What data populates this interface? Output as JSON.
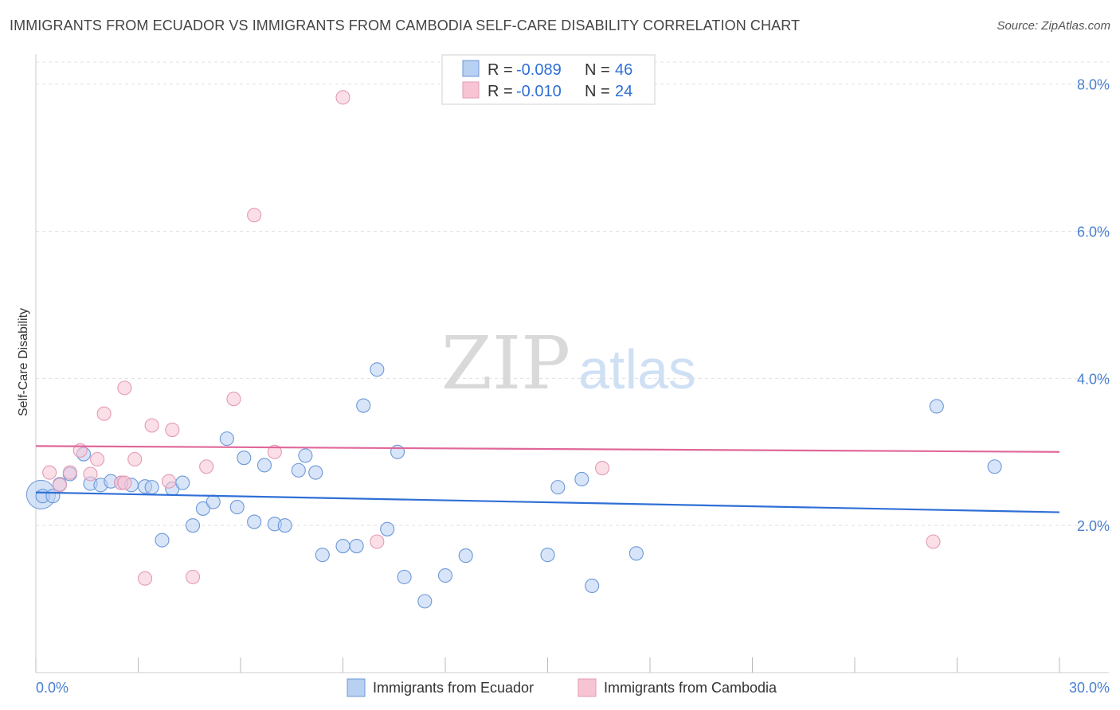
{
  "title": "IMMIGRANTS FROM ECUADOR VS IMMIGRANTS FROM CAMBODIA SELF-CARE DISABILITY CORRELATION CHART",
  "source": "Source: ZipAtlas.com",
  "watermark": {
    "zip": "ZIP",
    "atlas": "atlas"
  },
  "colors": {
    "blue": "#2f6fd6",
    "pink": "#e0679a",
    "blue_fill": "#b8d0f2",
    "pink_fill": "#f7c4d4"
  },
  "legend": {
    "rows": [
      {
        "r_label": "R =",
        "r_value": "-0.089",
        "n_label": "N =",
        "n_value": "46"
      },
      {
        "r_label": "R =",
        "r_value": "-0.010",
        "n_label": "N =",
        "n_value": "24"
      }
    ]
  },
  "chart_data": {
    "type": "scatter",
    "title": "IMMIGRANTS FROM ECUADOR VS IMMIGRANTS FROM CAMBODIA SELF-CARE DISABILITY CORRELATION CHART",
    "xlabel": "",
    "ylabel": "Self-Care Disability",
    "xlim": [
      0,
      30
    ],
    "ylim": [
      0,
      8.3
    ],
    "x_tick_labels": [
      "0.0%",
      "30.0%"
    ],
    "y_tick_labels": [
      "2.0%",
      "4.0%",
      "6.0%",
      "8.0%"
    ],
    "y_ticks": [
      2,
      4,
      6,
      8
    ],
    "grid": true,
    "legend_position": "bottom",
    "series": [
      {
        "name": "Immigrants from Ecuador",
        "color": "#2f6fd6",
        "trend": [
          [
            0,
            2.45
          ],
          [
            30,
            2.18
          ]
        ],
        "points": [
          [
            0.2,
            2.4
          ],
          [
            0.5,
            2.4
          ],
          [
            0.7,
            2.56
          ],
          [
            1.0,
            2.7
          ],
          [
            1.4,
            2.97
          ],
          [
            1.6,
            2.57
          ],
          [
            1.9,
            2.55
          ],
          [
            2.2,
            2.6
          ],
          [
            2.5,
            2.58
          ],
          [
            2.8,
            2.55
          ],
          [
            3.2,
            2.53
          ],
          [
            3.4,
            2.52
          ],
          [
            3.7,
            1.8
          ],
          [
            4.0,
            2.5
          ],
          [
            4.3,
            2.58
          ],
          [
            4.6,
            2.0
          ],
          [
            4.9,
            2.23
          ],
          [
            5.2,
            2.32
          ],
          [
            5.6,
            3.18
          ],
          [
            5.9,
            2.25
          ],
          [
            6.1,
            2.92
          ],
          [
            6.4,
            2.05
          ],
          [
            6.7,
            2.82
          ],
          [
            7.0,
            2.02
          ],
          [
            7.3,
            2.0
          ],
          [
            7.7,
            2.75
          ],
          [
            7.9,
            2.95
          ],
          [
            8.2,
            2.72
          ],
          [
            8.4,
            1.6
          ],
          [
            9.0,
            1.72
          ],
          [
            9.4,
            1.72
          ],
          [
            9.6,
            3.63
          ],
          [
            10.0,
            4.12
          ],
          [
            10.3,
            1.95
          ],
          [
            10.6,
            3.0
          ],
          [
            10.8,
            1.3
          ],
          [
            11.4,
            0.97
          ],
          [
            12.0,
            1.32
          ],
          [
            12.6,
            1.59
          ],
          [
            15.0,
            1.6
          ],
          [
            15.3,
            2.52
          ],
          [
            16.0,
            2.63
          ],
          [
            16.3,
            1.18
          ],
          [
            17.6,
            1.62
          ],
          [
            26.4,
            3.62
          ],
          [
            28.1,
            2.8
          ]
        ]
      },
      {
        "name": "Immigrants from Cambodia",
        "color": "#e0679a",
        "trend": [
          [
            0,
            3.08
          ],
          [
            30,
            3.0
          ]
        ],
        "points": [
          [
            0.4,
            2.72
          ],
          [
            0.7,
            2.55
          ],
          [
            1.0,
            2.72
          ],
          [
            1.3,
            3.02
          ],
          [
            1.6,
            2.7
          ],
          [
            1.8,
            2.9
          ],
          [
            2.0,
            3.52
          ],
          [
            2.5,
            2.58
          ],
          [
            2.6,
            2.58
          ],
          [
            2.6,
            3.87
          ],
          [
            2.9,
            2.9
          ],
          [
            3.2,
            1.28
          ],
          [
            3.4,
            3.36
          ],
          [
            3.9,
            2.6
          ],
          [
            4.0,
            3.3
          ],
          [
            4.6,
            1.3
          ],
          [
            5.0,
            2.8
          ],
          [
            5.8,
            3.72
          ],
          [
            6.4,
            6.22
          ],
          [
            7.0,
            3.0
          ],
          [
            9.0,
            7.82
          ],
          [
            10.0,
            1.78
          ],
          [
            16.6,
            2.78
          ],
          [
            26.3,
            1.78
          ]
        ]
      }
    ]
  }
}
